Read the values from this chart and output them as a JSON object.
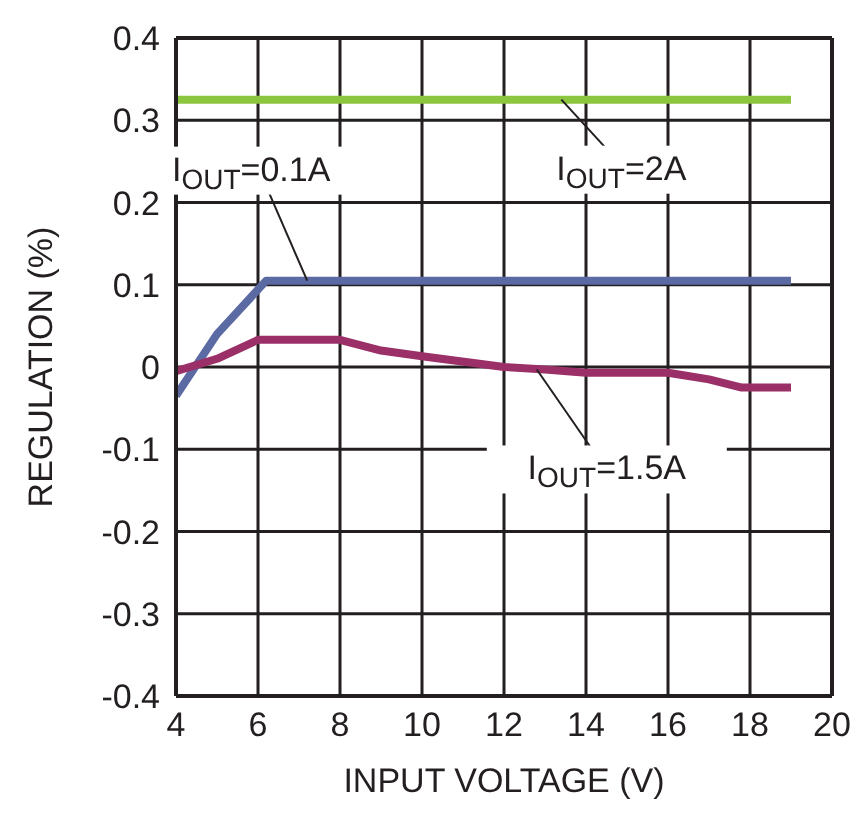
{
  "chart_data": {
    "type": "line",
    "xlabel": "INPUT VOLTAGE (V)",
    "ylabel": "REGULATION  (%)",
    "xlim": [
      4,
      20
    ],
    "xticks": [
      4,
      6,
      8,
      10,
      12,
      14,
      16,
      18,
      20
    ],
    "ylim": [
      -0.4,
      0.4
    ],
    "yticks": [
      -0.4,
      -0.3,
      -0.2,
      -0.1,
      0,
      0.1,
      0.2,
      0.3,
      0.4
    ],
    "grid": true,
    "marker": "none",
    "line_style": "solid",
    "series": [
      {
        "color": "#8cc63f",
        "x": [
          4,
          19
        ],
        "values": [
          0.325,
          0.325
        ]
      },
      {
        "color": "#5b6aa3",
        "x": [
          4,
          5,
          6.2,
          19
        ],
        "values": [
          -0.035,
          0.04,
          0.105,
          0.105
        ]
      },
      {
        "color": "#9b3068",
        "x": [
          4,
          5,
          6,
          8,
          9,
          10,
          12,
          13,
          14,
          16,
          17,
          17.8,
          19
        ],
        "values": [
          -0.005,
          0.01,
          0.033,
          0.033,
          0.02,
          0.013,
          0,
          -0.003,
          -0.007,
          -0.007,
          -0.015,
          -0.025,
          -0.025
        ]
      }
    ],
    "annotations": [
      {
        "text": "I$_{OUT}$=2A",
        "x": 13.4,
        "y": 0.325
      },
      {
        "text": "I$_{OUT}$=0.1A",
        "x": 7.2,
        "y": 0.105
      },
      {
        "text": "I$_{OUT}$=1.5A",
        "x": 12.8,
        "y": -0.003
      }
    ]
  }
}
